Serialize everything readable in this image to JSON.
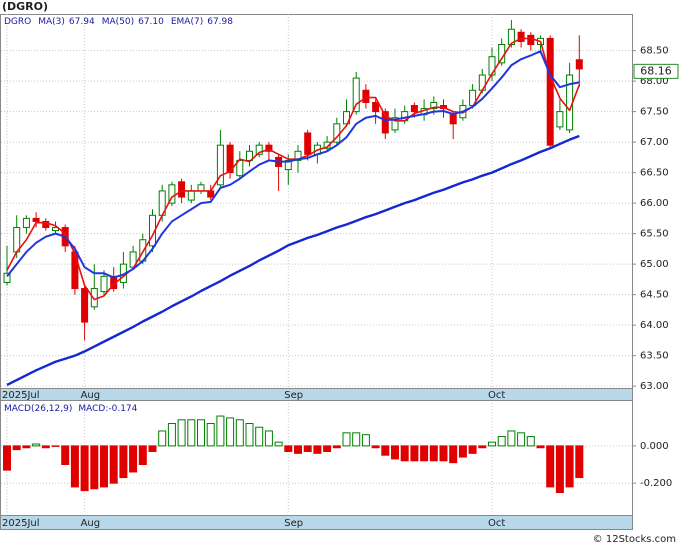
{
  "chart_data": [
    {
      "type": "candlestick",
      "title": "(DGRO)",
      "symbol": "DGRO",
      "categories": [
        "2025Jul",
        null,
        null,
        null,
        null,
        null,
        null,
        null,
        "Aug",
        null,
        null,
        null,
        null,
        null,
        null,
        null,
        null,
        null,
        null,
        null,
        null,
        null,
        null,
        null,
        null,
        null,
        null,
        null,
        null,
        "Sep",
        null,
        null,
        null,
        null,
        null,
        null,
        null,
        null,
        null,
        null,
        null,
        null,
        null,
        null,
        null,
        null,
        null,
        null,
        null,
        null,
        "Oct",
        null,
        null,
        null,
        null,
        null,
        null,
        null,
        null,
        null
      ],
      "open": [
        64.7,
        65.2,
        65.6,
        65.75,
        65.7,
        65.55,
        65.6,
        65.2,
        64.6,
        64.3,
        64.55,
        64.8,
        64.7,
        64.95,
        65.05,
        65.3,
        65.8,
        66.0,
        66.35,
        66.05,
        66.2,
        66.2,
        66.3,
        66.95,
        66.45,
        66.7,
        66.8,
        66.95,
        66.75,
        66.55,
        66.7,
        67.15,
        66.8,
        66.9,
        67.0,
        67.3,
        67.5,
        67.85,
        67.65,
        67.5,
        67.2,
        67.35,
        67.6,
        67.45,
        67.55,
        67.6,
        67.45,
        67.4,
        67.6,
        67.85,
        68.1,
        68.3,
        68.6,
        68.8,
        68.75,
        68.6,
        68.7,
        67.25,
        67.2,
        68.35
      ],
      "high": [
        65.3,
        65.8,
        65.8,
        65.85,
        65.75,
        65.7,
        65.65,
        65.3,
        64.65,
        65.0,
        64.9,
        64.95,
        65.2,
        65.3,
        65.5,
        65.9,
        66.3,
        66.35,
        66.4,
        66.3,
        66.35,
        66.3,
        67.2,
        67.0,
        66.85,
        66.95,
        67.0,
        67.0,
        66.8,
        66.8,
        66.95,
        67.2,
        67.0,
        67.1,
        67.4,
        67.7,
        68.15,
        67.95,
        67.7,
        67.55,
        67.55,
        67.6,
        67.65,
        67.7,
        67.75,
        67.7,
        67.5,
        67.7,
        67.95,
        68.2,
        68.55,
        68.7,
        69.0,
        68.85,
        68.8,
        68.75,
        68.75,
        67.7,
        68.3,
        68.75
      ],
      "low": [
        64.65,
        65.1,
        65.5,
        65.6,
        65.55,
        65.5,
        65.2,
        64.5,
        63.75,
        64.25,
        64.5,
        64.55,
        64.6,
        64.9,
        65.0,
        65.2,
        65.7,
        65.95,
        66.0,
        66.0,
        66.15,
        66.05,
        66.25,
        66.4,
        66.4,
        66.6,
        66.75,
        66.7,
        66.2,
        66.3,
        66.5,
        66.7,
        66.65,
        66.85,
        66.95,
        67.25,
        67.45,
        67.55,
        67.3,
        67.05,
        67.15,
        67.3,
        67.4,
        67.35,
        67.45,
        67.4,
        67.05,
        67.35,
        67.55,
        67.8,
        68.0,
        68.25,
        68.55,
        68.55,
        68.5,
        68.5,
        66.9,
        67.2,
        67.15,
        67.9
      ],
      "close": [
        64.85,
        65.6,
        65.75,
        65.7,
        65.6,
        65.6,
        65.3,
        64.6,
        64.05,
        64.6,
        64.8,
        64.6,
        65.0,
        65.2,
        65.4,
        65.8,
        66.2,
        66.3,
        66.1,
        66.2,
        66.3,
        66.1,
        66.95,
        66.5,
        66.7,
        66.85,
        66.95,
        66.85,
        66.6,
        66.7,
        66.85,
        66.8,
        66.95,
        67.0,
        67.3,
        67.5,
        68.05,
        67.65,
        67.5,
        67.15,
        67.4,
        67.5,
        67.5,
        67.55,
        67.65,
        67.55,
        67.3,
        67.6,
        67.85,
        68.1,
        68.4,
        68.6,
        68.85,
        68.65,
        68.6,
        68.7,
        66.95,
        67.5,
        68.1,
        68.2
      ],
      "up_color": "#008000",
      "down_color": "#e00000",
      "series": [
        {
          "name": "MA(3)",
          "legend_value": "67.94",
          "color": "#e81010",
          "values": [
            64.9,
            65.2,
            65.4,
            65.68,
            65.68,
            65.63,
            65.5,
            65.17,
            64.65,
            64.42,
            64.48,
            64.67,
            64.8,
            64.93,
            65.2,
            65.47,
            65.8,
            66.1,
            66.2,
            66.2,
            66.2,
            66.2,
            66.45,
            66.52,
            66.72,
            66.68,
            66.83,
            66.88,
            66.8,
            66.72,
            66.72,
            66.78,
            66.87,
            66.92,
            67.08,
            67.27,
            67.62,
            67.73,
            67.73,
            67.43,
            67.35,
            67.35,
            67.47,
            67.52,
            67.57,
            67.57,
            67.5,
            67.48,
            67.58,
            67.85,
            68.12,
            68.37,
            68.62,
            68.7,
            68.7,
            68.65,
            68.08,
            67.72,
            67.52,
            67.94
          ]
        },
        {
          "name": "MA(50)",
          "legend_value": "67.10",
          "color": "#1428d2",
          "values": [
            63.02,
            63.1,
            63.18,
            63.26,
            63.33,
            63.4,
            63.45,
            63.5,
            63.57,
            63.65,
            63.73,
            63.81,
            63.89,
            63.97,
            64.06,
            64.14,
            64.22,
            64.31,
            64.39,
            64.47,
            64.56,
            64.64,
            64.72,
            64.81,
            64.89,
            64.97,
            65.06,
            65.14,
            65.22,
            65.31,
            65.37,
            65.43,
            65.48,
            65.54,
            65.6,
            65.65,
            65.71,
            65.77,
            65.82,
            65.88,
            65.94,
            66.0,
            66.05,
            66.11,
            66.17,
            66.22,
            66.28,
            66.34,
            66.39,
            66.45,
            66.5,
            66.57,
            66.64,
            66.7,
            66.77,
            66.84,
            66.9,
            66.97,
            67.04,
            67.1
          ]
        },
        {
          "name": "EMA(7)",
          "legend_value": "67.98",
          "color": "#2036e0",
          "values": [
            64.8,
            65.0,
            65.2,
            65.35,
            65.45,
            65.5,
            65.45,
            65.25,
            64.95,
            64.85,
            64.85,
            64.78,
            64.83,
            64.92,
            65.05,
            65.25,
            65.5,
            65.7,
            65.8,
            65.9,
            66.0,
            66.02,
            66.25,
            66.3,
            66.4,
            66.52,
            66.63,
            66.7,
            66.68,
            66.68,
            66.72,
            66.74,
            66.8,
            66.85,
            66.95,
            67.08,
            67.3,
            67.4,
            67.43,
            67.36,
            67.37,
            67.4,
            67.43,
            67.46,
            67.5,
            67.51,
            67.46,
            67.5,
            67.58,
            67.71,
            67.88,
            68.06,
            68.26,
            68.36,
            68.42,
            68.49,
            68.1,
            67.9,
            67.95,
            67.98
          ]
        }
      ],
      "last_price": 68.16,
      "ylim": [
        62.97,
        69.1
      ],
      "yticks": [
        {
          "value": 63.0,
          "label": "63.00"
        },
        {
          "value": 63.5,
          "label": "63.50"
        },
        {
          "value": 64.0,
          "label": "64.00"
        },
        {
          "value": 64.5,
          "label": "64.50"
        },
        {
          "value": 65.0,
          "label": "65.00"
        },
        {
          "value": 65.5,
          "label": "65.50"
        },
        {
          "value": 66.0,
          "label": "66.00"
        },
        {
          "value": 66.5,
          "label": "66.50"
        },
        {
          "value": 67.0,
          "label": "67.00"
        },
        {
          "value": 67.5,
          "label": "67.50"
        },
        {
          "value": 68.0,
          "label": "68.00"
        },
        {
          "value": 68.5,
          "label": "68.50"
        }
      ],
      "grid": true
    },
    {
      "type": "bar",
      "title": "MACD(26,12,9)",
      "subtitle": "MACD:-0.174",
      "categories": [
        "2025Jul",
        null,
        null,
        null,
        null,
        null,
        null,
        null,
        "Aug",
        null,
        null,
        null,
        null,
        null,
        null,
        null,
        null,
        null,
        null,
        null,
        null,
        null,
        null,
        null,
        null,
        null,
        null,
        null,
        null,
        "Sep",
        null,
        null,
        null,
        null,
        null,
        null,
        null,
        null,
        null,
        null,
        null,
        null,
        null,
        null,
        null,
        null,
        null,
        null,
        null,
        null,
        "Oct",
        null,
        null,
        null,
        null,
        null,
        null,
        null,
        null,
        null
      ],
      "values": [
        -0.13,
        -0.02,
        -0.01,
        0.01,
        -0.01,
        0,
        -0.1,
        -0.22,
        -0.24,
        -0.23,
        -0.22,
        -0.2,
        -0.17,
        -0.14,
        -0.1,
        -0.03,
        0.08,
        0.12,
        0.14,
        0.14,
        0.14,
        0.12,
        0.16,
        0.15,
        0.14,
        0.12,
        0.1,
        0.08,
        0.02,
        -0.03,
        -0.04,
        -0.03,
        -0.04,
        -0.03,
        -0.01,
        0.07,
        0.07,
        0.06,
        -0.01,
        -0.05,
        -0.07,
        -0.08,
        -0.08,
        -0.08,
        -0.08,
        -0.08,
        -0.09,
        -0.06,
        -0.04,
        -0.01,
        0.02,
        0.05,
        0.08,
        0.07,
        0.05,
        -0.01,
        -0.22,
        -0.25,
        -0.22,
        -0.17
      ],
      "up_color": "#008000",
      "down_color": "#e00000",
      "ylim": [
        -0.36,
        0.23
      ],
      "yticks": [
        {
          "value": 0,
          "label": "0.000"
        },
        {
          "value": -0.2,
          "label": "-0.200"
        }
      ],
      "grid": true
    }
  ],
  "footer": "© 12Stocks.com"
}
